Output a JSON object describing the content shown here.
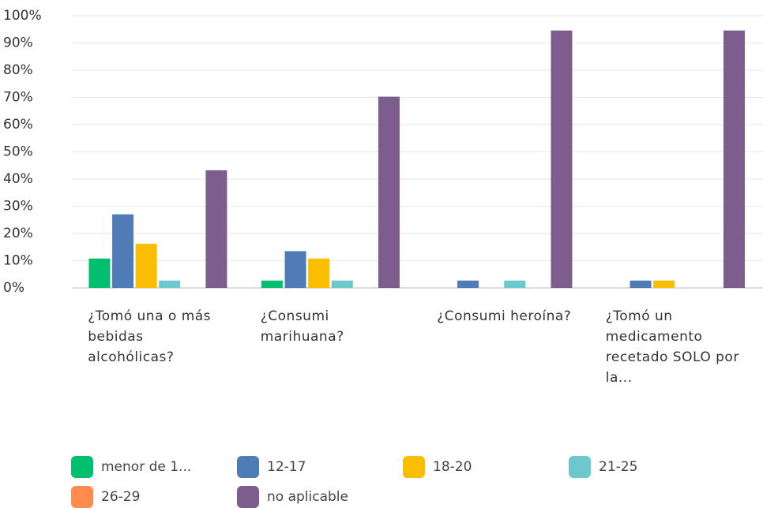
{
  "chart_data": {
    "type": "bar",
    "categories": [
      "¿Tomó una o más bebidas alcohólicas?",
      "¿Consumi marihuana?",
      "¿Consumi heroína?",
      "¿Tomó un medicamento recetado SOLO por la..."
    ],
    "series": [
      {
        "name": "menor de 1...",
        "color": "#00bf6f",
        "values": [
          10.81,
          2.7,
          0,
          0
        ]
      },
      {
        "name": "12-17",
        "color": "#507cb6",
        "values": [
          27.03,
          13.51,
          2.7,
          2.7
        ]
      },
      {
        "name": "18-20",
        "color": "#f9be00",
        "values": [
          16.22,
          10.81,
          0,
          2.7
        ]
      },
      {
        "name": "21-25",
        "color": "#6bc8cd",
        "values": [
          2.7,
          2.7,
          2.7,
          0
        ]
      },
      {
        "name": "26-29",
        "color": "#ff8b4f",
        "values": [
          0,
          0,
          0,
          0
        ]
      },
      {
        "name": "no aplicable",
        "color": "#7d5c8e",
        "values": [
          43.24,
          70.27,
          94.59,
          94.59
        ]
      }
    ],
    "ylim": [
      0,
      100
    ],
    "yticks": [
      {
        "value": 0,
        "label": "0%"
      },
      {
        "value": 10,
        "label": "10%"
      },
      {
        "value": 20,
        "label": "20%"
      },
      {
        "value": 30,
        "label": "30%"
      },
      {
        "value": 40,
        "label": "40%"
      },
      {
        "value": 50,
        "label": "50%"
      },
      {
        "value": 60,
        "label": "60%"
      },
      {
        "value": 70,
        "label": "70%"
      },
      {
        "value": 80,
        "label": "80%"
      },
      {
        "value": 90,
        "label": "90%"
      },
      {
        "value": 100,
        "label": "100%"
      }
    ],
    "grid": true,
    "legend": "bottom"
  }
}
